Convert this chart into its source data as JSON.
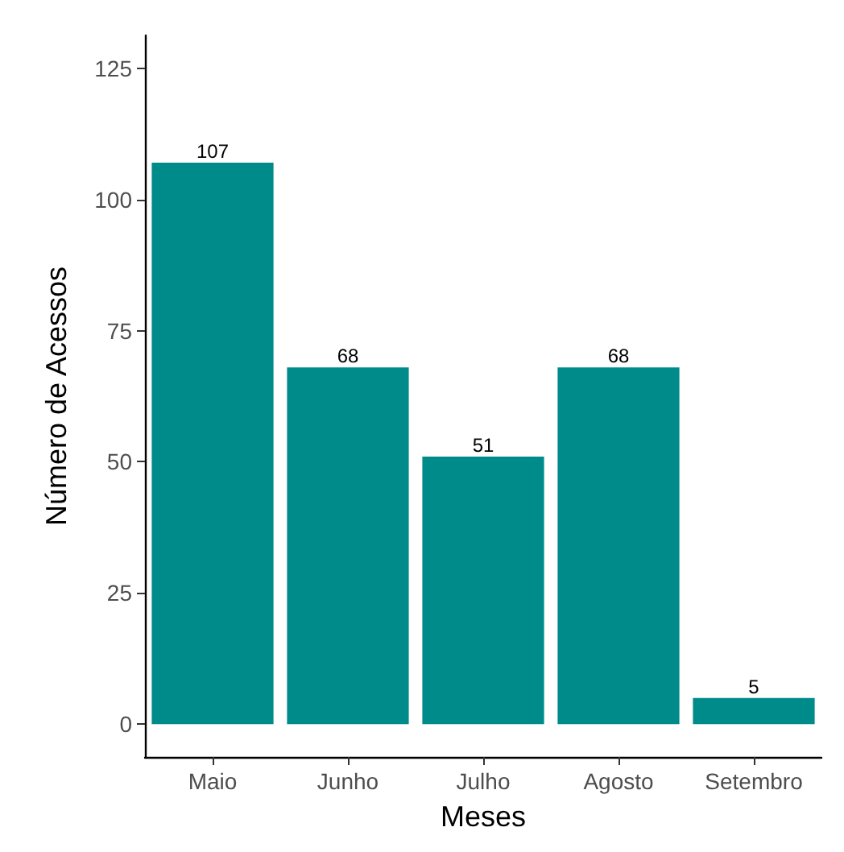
{
  "chart_data": {
    "type": "bar",
    "xlabel": "Meses",
    "ylabel": "Número de Acessos",
    "categories": [
      "Maio",
      "Junho",
      "Julho",
      "Agosto",
      "Setembro"
    ],
    "values": [
      107,
      68,
      51,
      68,
      5
    ],
    "color": "#008b8b",
    "ylim": [
      -6.25,
      131.25
    ],
    "yticks": [
      0,
      25,
      50,
      75,
      100,
      125
    ],
    "grid": false,
    "data_labels": true
  }
}
